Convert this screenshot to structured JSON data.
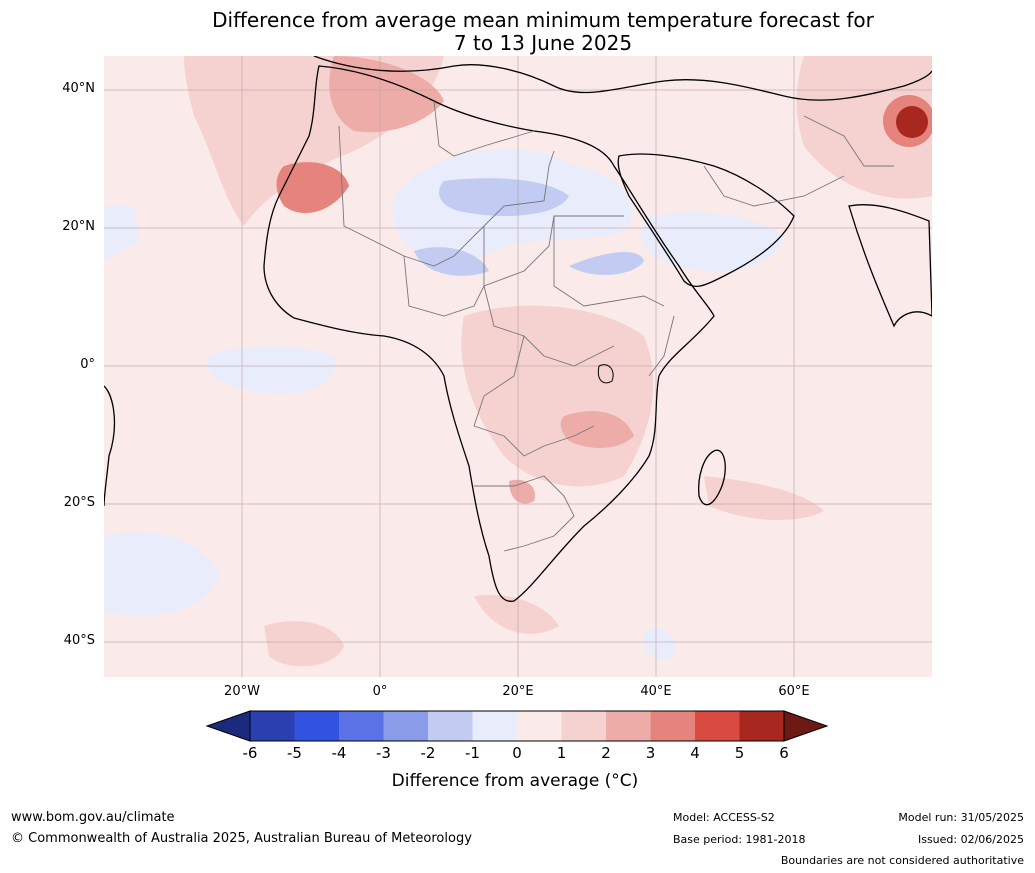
{
  "title_line1": "Difference from average mean minimum temperature forecast for",
  "title_line2": "7 to 13 June 2025",
  "lat_labels": [
    "40°N",
    "20°N",
    "0°",
    "20°S",
    "40°S"
  ],
  "lon_labels": [
    "20°W",
    "0°",
    "20°E",
    "40°E",
    "60°E"
  ],
  "colorbar": {
    "ticks": [
      "-6",
      "-5",
      "-4",
      "-3",
      "-2",
      "-1",
      "0",
      "1",
      "2",
      "3",
      "4",
      "5",
      "6"
    ],
    "colors": [
      "#1c2a7e",
      "#2a3fb0",
      "#3252e0",
      "#5a72e6",
      "#8a9ce9",
      "#c2cbf2",
      "#e8ecfb",
      "#fbeaea",
      "#f5d2d0",
      "#edaca8",
      "#e5847d",
      "#d94a40",
      "#a8281f",
      "#6e1a14"
    ],
    "label": "Difference from average (°C)"
  },
  "footer": {
    "website": "www.bom.gov.au/climate",
    "copyright": "© Commonwealth of Australia 2025, Australian Bureau of Meteorology",
    "model": "Model: ACCESS-S2",
    "base_period": "Base period: 1981-2018",
    "model_run": "Model run: 31/05/2025",
    "issued": "Issued: 02/06/2025",
    "disclaimer": "Boundaries are not considered authoritative"
  }
}
